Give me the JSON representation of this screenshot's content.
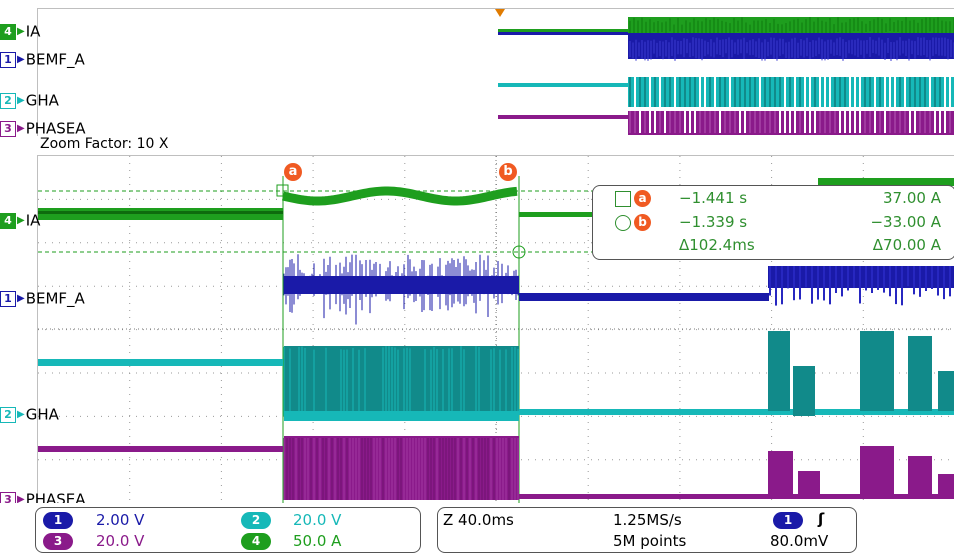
{
  "channels": [
    {
      "id": "4",
      "name": "IA",
      "color": "#1e9e1e",
      "badge_bg": "#1e9e1e",
      "badge_fg": "#ffffff"
    },
    {
      "id": "1",
      "name": "BEMF_A",
      "color": "#1a1aa8",
      "badge_bg": "#ffffff",
      "badge_fg": "#1a1aa8"
    },
    {
      "id": "2",
      "name": "GHA",
      "color": "#16b8b8",
      "badge_bg": "#ffffff",
      "badge_fg": "#16b8b8"
    },
    {
      "id": "3",
      "name": "PHASEA",
      "color": "#8a1a8a",
      "badge_bg": "#ffffff",
      "badge_fg": "#8a1a8a"
    }
  ],
  "zoom_factor": "Zoom Factor: 10 X",
  "cursors": {
    "a": "a",
    "b": "b"
  },
  "measurements": {
    "a_time": "−1.441 s",
    "a_value": "37.00 A",
    "b_time": "−1.339 s",
    "b_value": "−33.00 A",
    "delta_time": "Δ102.4ms",
    "delta_value": "Δ70.00 A"
  },
  "scales": {
    "ch1": {
      "num": "1",
      "value": "2.00 V",
      "color": "#1a1aa8"
    },
    "ch2": {
      "num": "2",
      "value": "20.0 V",
      "color": "#16b8b8"
    },
    "ch3": {
      "num": "3",
      "value": "20.0 V",
      "color": "#8a1a8a"
    },
    "ch4": {
      "num": "4",
      "value": "50.0 A",
      "color": "#1e9e1e"
    }
  },
  "timebase": {
    "zoom": "Z 40.0ms",
    "sample_rate": "1.25MS/s",
    "points": "5M points",
    "trigger_channel": "1",
    "trigger_slope": "ʃ",
    "trigger_level": "80.0mV"
  }
}
